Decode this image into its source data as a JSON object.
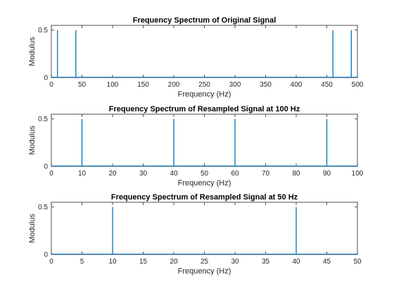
{
  "chart_data": [
    {
      "type": "line",
      "title": "Frequency Spectrum of Original Signal",
      "xlabel": "Frequency (Hz)",
      "ylabel": "Modulus",
      "xlim": [
        0,
        500
      ],
      "ylim": [
        0,
        0.55
      ],
      "xticks": [
        0,
        50,
        100,
        150,
        200,
        250,
        300,
        350,
        400,
        450,
        500
      ],
      "yticks": [
        0,
        0.5
      ],
      "grid": false,
      "line_color": "#0072BD",
      "peaks": [
        {
          "x": 10,
          "y": 0.5
        },
        {
          "x": 40,
          "y": 0.5
        },
        {
          "x": 460,
          "y": 0.5
        },
        {
          "x": 490,
          "y": 0.5
        }
      ],
      "baseline": 0
    },
    {
      "type": "line",
      "title": "Frequency Spectrum of Resampled Signal at 100 Hz",
      "xlabel": "Frequency (Hz)",
      "ylabel": "Modulus",
      "xlim": [
        0,
        100
      ],
      "ylim": [
        0,
        0.55
      ],
      "xticks": [
        0,
        10,
        20,
        30,
        40,
        50,
        60,
        70,
        80,
        90,
        100
      ],
      "yticks": [
        0,
        0.5
      ],
      "grid": false,
      "line_color": "#0072BD",
      "peaks": [
        {
          "x": 10,
          "y": 0.5
        },
        {
          "x": 40,
          "y": 0.5
        },
        {
          "x": 60,
          "y": 0.5
        },
        {
          "x": 90,
          "y": 0.5
        }
      ],
      "baseline": 0
    },
    {
      "type": "line",
      "title": "Frequency Spectrum of Resampled Signal at 50 Hz",
      "xlabel": "Frequency (Hz)",
      "ylabel": "Modulus",
      "xlim": [
        0,
        50
      ],
      "ylim": [
        0,
        0.55
      ],
      "xticks": [
        0,
        5,
        10,
        15,
        20,
        25,
        30,
        35,
        40,
        45,
        50
      ],
      "yticks": [
        0,
        0.5
      ],
      "grid": false,
      "line_color": "#0072BD",
      "peaks": [
        {
          "x": 10,
          "y": 0.5
        },
        {
          "x": 40,
          "y": 0.5
        }
      ],
      "baseline": 0
    }
  ]
}
